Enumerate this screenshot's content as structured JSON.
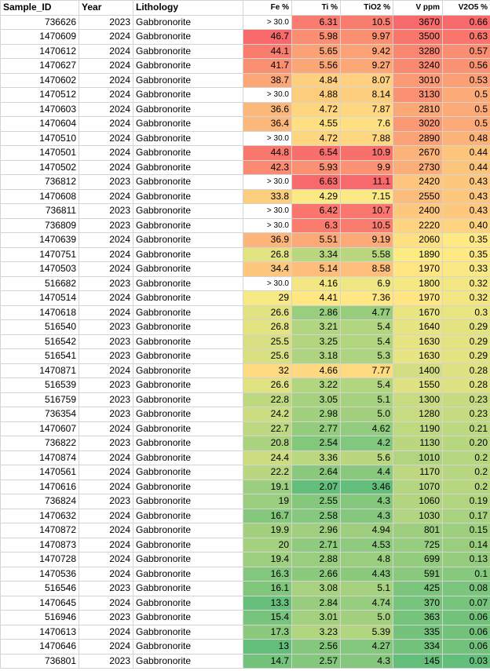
{
  "columns": [
    "Sample_ID",
    "Year",
    "Lithology",
    "Fe %",
    "Ti %",
    "TiO2 %",
    "V ppm",
    "V2O5 %"
  ],
  "rows": [
    [
      "736626",
      "2023",
      "Gabbronorite",
      "> 30.0",
      "6.31",
      "10.5",
      "3670",
      "0.66"
    ],
    [
      "1470609",
      "2024",
      "Gabbronorite",
      "46.7",
      "5.98",
      "9.97",
      "3500",
      "0.63"
    ],
    [
      "1470612",
      "2024",
      "Gabbronorite",
      "44.1",
      "5.65",
      "9.42",
      "3280",
      "0.57"
    ],
    [
      "1470627",
      "2024",
      "Gabbronorite",
      "41.7",
      "5.56",
      "9.27",
      "3240",
      "0.56"
    ],
    [
      "1470602",
      "2024",
      "Gabbronorite",
      "38.7",
      "4.84",
      "8.07",
      "3010",
      "0.53"
    ],
    [
      "1470512",
      "2024",
      "Gabbronorite",
      "> 30.0",
      "4.88",
      "8.14",
      "3130",
      "0.5"
    ],
    [
      "1470603",
      "2024",
      "Gabbronorite",
      "36.6",
      "4.72",
      "7.87",
      "2810",
      "0.5"
    ],
    [
      "1470604",
      "2024",
      "Gabbronorite",
      "36.4",
      "4.55",
      "7.6",
      "3020",
      "0.5"
    ],
    [
      "1470510",
      "2024",
      "Gabbronorite",
      "> 30.0",
      "4.72",
      "7.88",
      "2890",
      "0.48"
    ],
    [
      "1470501",
      "2024",
      "Gabbronorite",
      "44.8",
      "6.54",
      "10.9",
      "2670",
      "0.44"
    ],
    [
      "1470502",
      "2024",
      "Gabbronorite",
      "42.3",
      "5.93",
      "9.9",
      "2730",
      "0.44"
    ],
    [
      "736812",
      "2023",
      "Gabbronorite",
      "> 30.0",
      "6.63",
      "11.1",
      "2420",
      "0.43"
    ],
    [
      "1470608",
      "2024",
      "Gabbronorite",
      "33.8",
      "4.29",
      "7.15",
      "2550",
      "0.43"
    ],
    [
      "736811",
      "2023",
      "Gabbronorite",
      "> 30.0",
      "6.42",
      "10.7",
      "2400",
      "0.43"
    ],
    [
      "736809",
      "2023",
      "Gabbronorite",
      "> 30.0",
      "6.3",
      "10.5",
      "2220",
      "0.40"
    ],
    [
      "1470639",
      "2024",
      "Gabbronorite",
      "36.9",
      "5.51",
      "9.19",
      "2060",
      "0.35"
    ],
    [
      "1470751",
      "2024",
      "Gabbronorite",
      "26.8",
      "3.34",
      "5.58",
      "1890",
      "0.35"
    ],
    [
      "1470503",
      "2024",
      "Gabbronorite",
      "34.4",
      "5.14",
      "8.58",
      "1970",
      "0.33"
    ],
    [
      "516682",
      "2023",
      "Gabbronorite",
      "> 30.0",
      "4.16",
      "6.9",
      "1800",
      "0.32"
    ],
    [
      "1470514",
      "2024",
      "Gabbronorite",
      "29",
      "4.41",
      "7.36",
      "1970",
      "0.32"
    ],
    [
      "1470618",
      "2024",
      "Gabbronorite",
      "26.6",
      "2.86",
      "4.77",
      "1670",
      "0.3"
    ],
    [
      "516540",
      "2023",
      "Gabbronorite",
      "26.8",
      "3.21",
      "5.4",
      "1640",
      "0.29"
    ],
    [
      "516542",
      "2023",
      "Gabbronorite",
      "25.5",
      "3.25",
      "5.4",
      "1630",
      "0.29"
    ],
    [
      "516541",
      "2023",
      "Gabbronorite",
      "25.6",
      "3.18",
      "5.3",
      "1630",
      "0.29"
    ],
    [
      "1470871",
      "2024",
      "Gabbronorite",
      "32",
      "4.66",
      "7.77",
      "1400",
      "0.28"
    ],
    [
      "516539",
      "2023",
      "Gabbronorite",
      "26.6",
      "3.22",
      "5.4",
      "1550",
      "0.28"
    ],
    [
      "516759",
      "2023",
      "Gabbronorite",
      "22.8",
      "3.05",
      "5.1",
      "1300",
      "0.23"
    ],
    [
      "736354",
      "2023",
      "Gabbronorite",
      "24.2",
      "2.98",
      "5.0",
      "1280",
      "0.23"
    ],
    [
      "1470607",
      "2024",
      "Gabbronorite",
      "22.7",
      "2.77",
      "4.62",
      "1190",
      "0.21"
    ],
    [
      "736822",
      "2023",
      "Gabbronorite",
      "20.8",
      "2.54",
      "4.2",
      "1130",
      "0.20"
    ],
    [
      "1470874",
      "2024",
      "Gabbronorite",
      "24.4",
      "3.36",
      "5.6",
      "1010",
      "0.2"
    ],
    [
      "1470561",
      "2024",
      "Gabbronorite",
      "22.2",
      "2.64",
      "4.4",
      "1170",
      "0.2"
    ],
    [
      "1470616",
      "2024",
      "Gabbronorite",
      "19.1",
      "2.07",
      "3.46",
      "1070",
      "0.2"
    ],
    [
      "736824",
      "2023",
      "Gabbronorite",
      "19",
      "2.55",
      "4.3",
      "1060",
      "0.19"
    ],
    [
      "1470632",
      "2024",
      "Gabbronorite",
      "16.7",
      "2.58",
      "4.3",
      "1030",
      "0.17"
    ],
    [
      "1470872",
      "2024",
      "Gabbronorite",
      "19.9",
      "2.96",
      "4.94",
      "801",
      "0.15"
    ],
    [
      "1470873",
      "2024",
      "Gabbronorite",
      "20",
      "2.71",
      "4.53",
      "725",
      "0.14"
    ],
    [
      "1470728",
      "2024",
      "Gabbronorite",
      "19.4",
      "2.88",
      "4.8",
      "699",
      "0.13"
    ],
    [
      "1470536",
      "2024",
      "Gabbronorite",
      "16.3",
      "2.66",
      "4.43",
      "591",
      "0.1"
    ],
    [
      "516546",
      "2023",
      "Gabbronorite",
      "16.1",
      "3.08",
      "5.1",
      "425",
      "0.08"
    ],
    [
      "1470645",
      "2024",
      "Gabbronorite",
      "13.3",
      "2.84",
      "4.74",
      "370",
      "0.07"
    ],
    [
      "516946",
      "2023",
      "Gabbronorite",
      "15.4",
      "3.01",
      "5.0",
      "363",
      "0.06"
    ],
    [
      "1470613",
      "2024",
      "Gabbronorite",
      "17.3",
      "3.23",
      "5.39",
      "335",
      "0.06"
    ],
    [
      "1470646",
      "2024",
      "Gabbronorite",
      "13",
      "2.56",
      "4.27",
      "334",
      "0.06"
    ],
    [
      "736801",
      "2023",
      "Gabbronorite",
      "14.7",
      "2.57",
      "4.3",
      "145",
      "0.03"
    ]
  ],
  "colors": {
    "scale_low": "#63be7b",
    "scale_mid": "#ffeb84",
    "scale_high": "#f8696b",
    "no_fill": "#ffffff",
    "gridline": "#d4d4d4"
  }
}
